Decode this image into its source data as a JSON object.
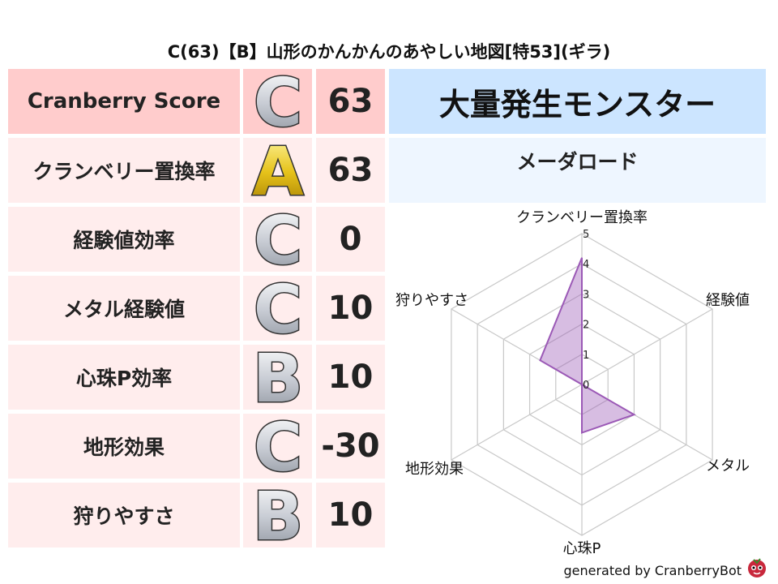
{
  "title": "C(63)【B】山形のかんかんのあやしい地図[特53](ギラ)",
  "rows": [
    {
      "label": "Cranberry Score",
      "grade": "C",
      "value": "63"
    },
    {
      "label": "クランベリー置換率",
      "grade": "A",
      "value": "63"
    },
    {
      "label": "経験値効率",
      "grade": "C",
      "value": "0"
    },
    {
      "label": "メタル経験値",
      "grade": "C",
      "value": "10"
    },
    {
      "label": "心珠P効率",
      "grade": "B",
      "value": "10"
    },
    {
      "label": "地形効果",
      "grade": "C",
      "value": "-30"
    },
    {
      "label": "狩りやすさ",
      "grade": "B",
      "value": "10"
    }
  ],
  "monster": {
    "header": "大量発生モンスター",
    "name": "メーダロード"
  },
  "colors": {
    "header_row": "#ffcccc",
    "row": "#ffeded",
    "monster_header": "#cce5ff",
    "monster_body": "#eef6ff",
    "radar": "#9b59b6",
    "grade_silver": "#c8ccd4",
    "grade_gold": "#e6c21a"
  },
  "chart_data": {
    "type": "radar",
    "axes": [
      "クランベリー置換率",
      "経験値",
      "メタル",
      "心珠P",
      "地形効果",
      "狩りやすさ"
    ],
    "values": [
      4.2,
      0,
      2.0,
      1.6,
      0,
      1.6
    ],
    "rlim": [
      0,
      5
    ],
    "ticks": [
      "0",
      "1",
      "2",
      "3",
      "4",
      "5"
    ],
    "grid": true
  },
  "footer": "generated by CranberryBot"
}
